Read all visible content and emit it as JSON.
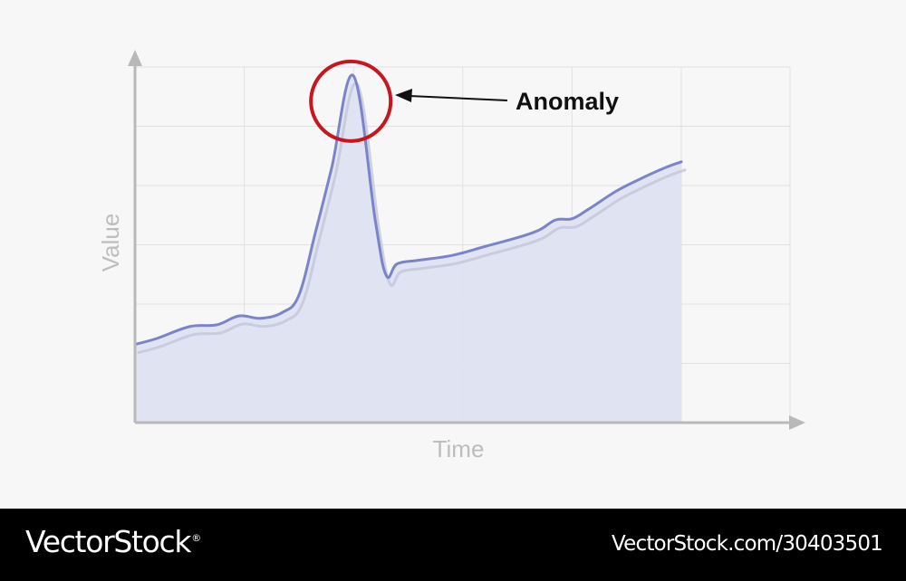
{
  "chart_data": {
    "type": "area",
    "title": "",
    "xlabel": "Time",
    "ylabel": "Value",
    "grid": true,
    "xlim": [
      0,
      5
    ],
    "ylim": [
      0,
      6
    ],
    "x": [
      0,
      0.2,
      0.5,
      0.75,
      0.95,
      1.15,
      1.35,
      1.5,
      1.65,
      1.8,
      2.0,
      2.2,
      2.3,
      2.4,
      2.6,
      2.9,
      3.2,
      3.5,
      3.7,
      3.85,
      4.0,
      4.15,
      4.4,
      4.6,
      4.85,
      5.0
    ],
    "series": [
      {
        "values": [
          1.32,
          1.42,
          1.62,
          1.65,
          1.8,
          1.76,
          1.86,
          2.15,
          3.2,
          4.3,
          5.85,
          3.4,
          2.48,
          2.68,
          2.74,
          2.82,
          2.97,
          3.12,
          3.25,
          3.42,
          3.44,
          3.6,
          3.9,
          4.09,
          4.3,
          4.4
        ],
        "color": "#7b84c8"
      }
    ],
    "annotations": [
      {
        "text": "Anomaly",
        "x": 2.0,
        "y": 5.85
      }
    ],
    "colors": {
      "line": "#7b84c8",
      "shadow": "#c3c6d8",
      "fill": "#dde2f1",
      "axis": "#b9b9b9",
      "grid": "#e1e1e1",
      "label": "#bdbdbd",
      "circle": "#c8161f"
    }
  },
  "footer": {
    "brand": "VectorStock",
    "brand_mark": "®",
    "image_id": "VectorStock.com/30403501"
  }
}
